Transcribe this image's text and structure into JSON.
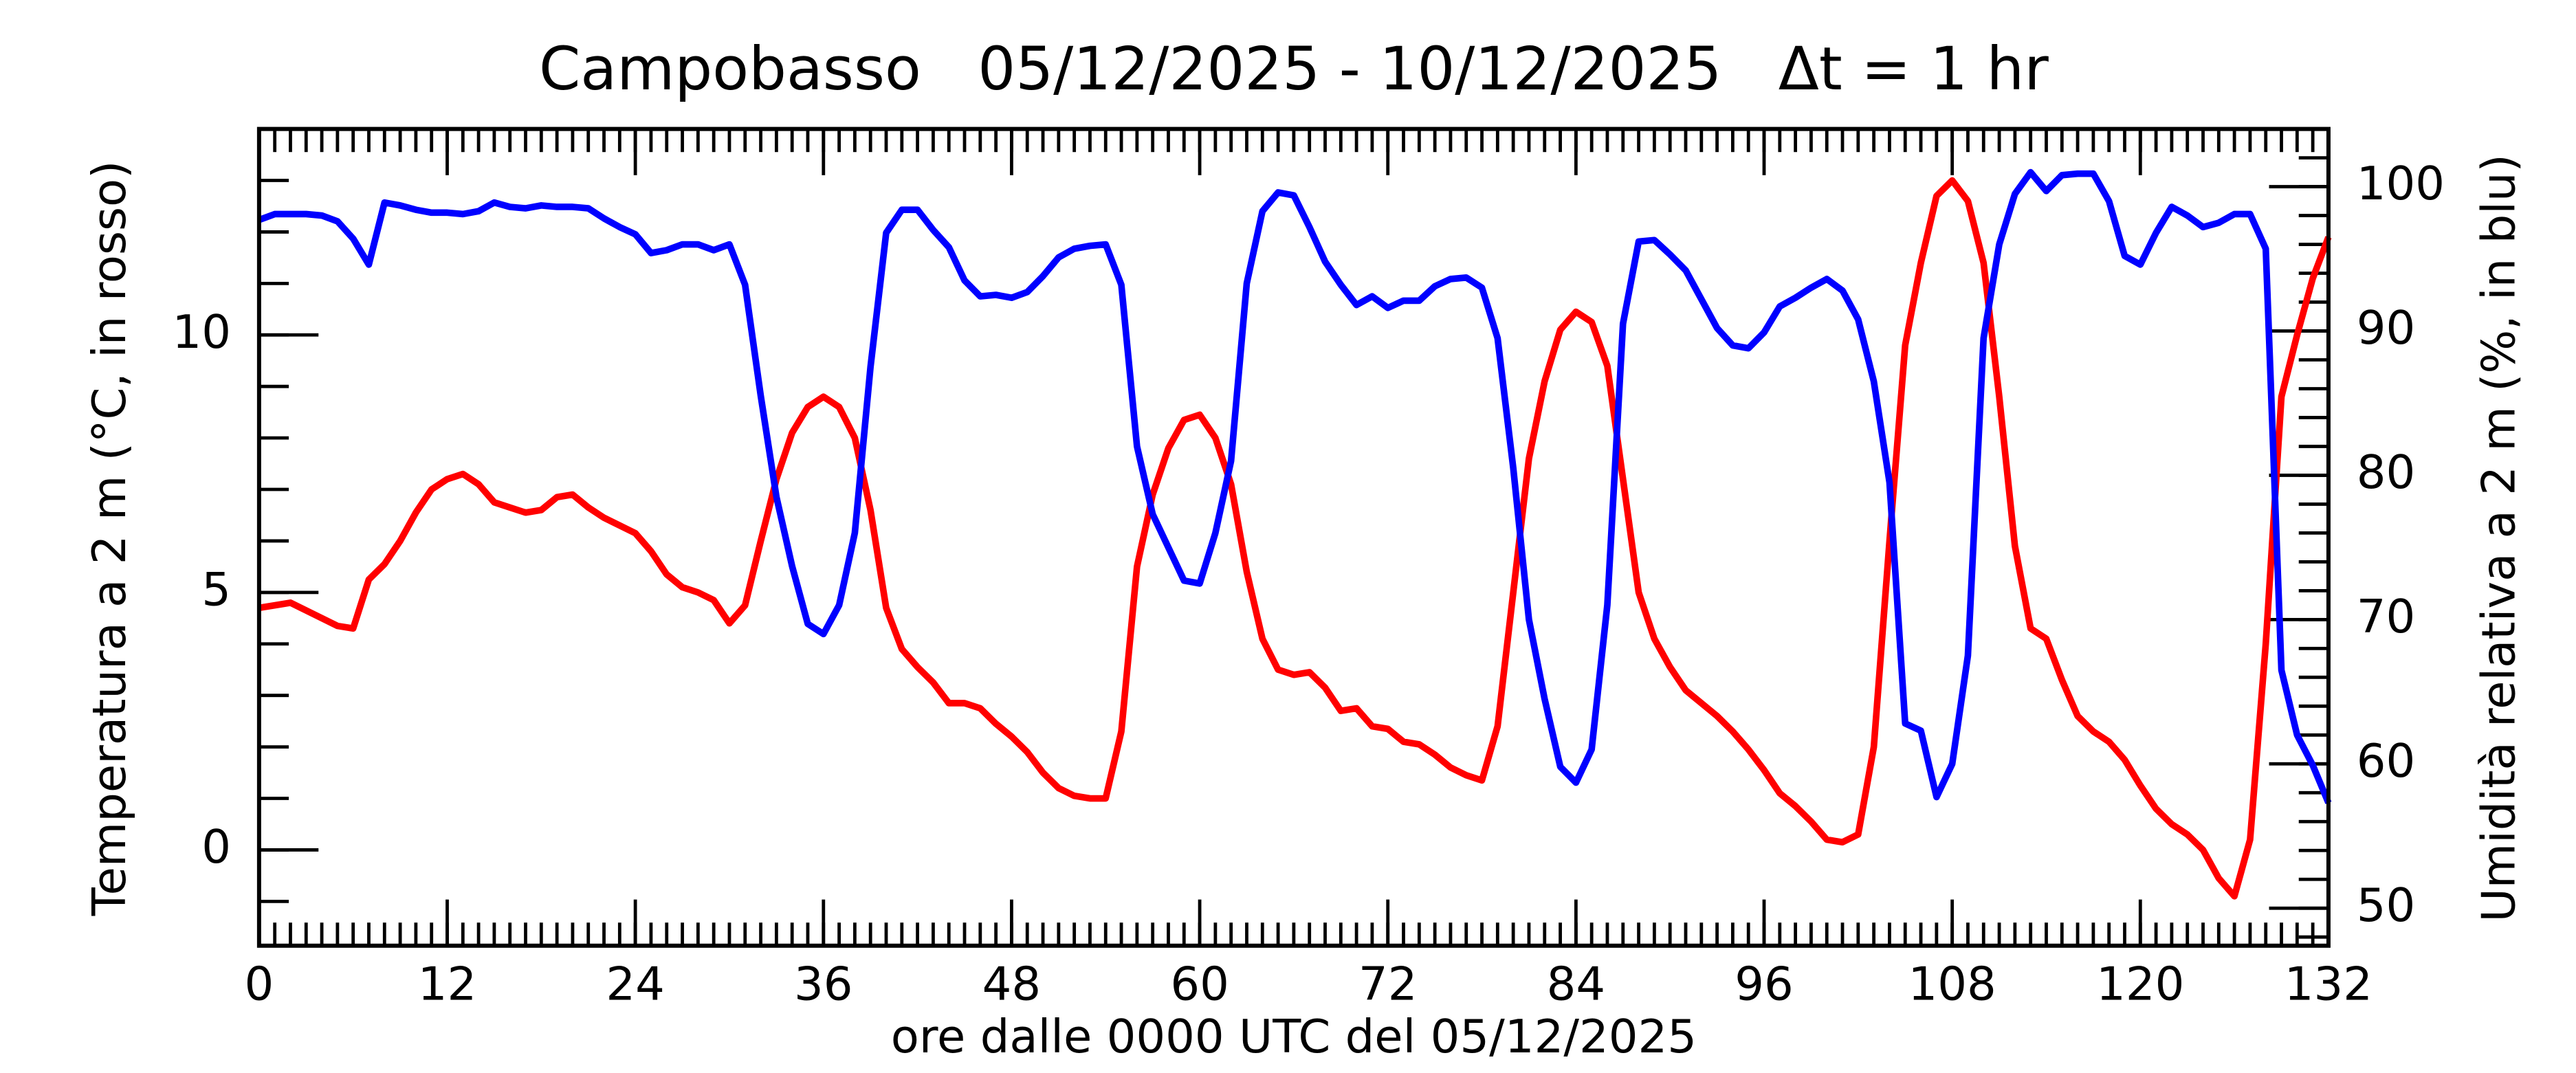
{
  "chart_data": {
    "type": "line",
    "title": "Campobasso   05/12/2025 - 10/12/2025   Δt = 1 hr",
    "xlabel": "ore dalle 0000 UTC del 05/12/2025",
    "ylabel": "Temperatura a 2 m (°C, in rosso)",
    "y2label": "Umidità relativa a 2 m (%, in blu)",
    "x": [
      0,
      1,
      2,
      3,
      4,
      5,
      6,
      7,
      8,
      9,
      10,
      11,
      12,
      13,
      14,
      15,
      16,
      17,
      18,
      19,
      20,
      21,
      22,
      23,
      24,
      25,
      26,
      27,
      28,
      29,
      30,
      31,
      32,
      33,
      34,
      35,
      36,
      37,
      38,
      39,
      40,
      41,
      42,
      43,
      44,
      45,
      46,
      47,
      48,
      49,
      50,
      51,
      52,
      53,
      54,
      55,
      56,
      57,
      58,
      59,
      60,
      61,
      62,
      63,
      64,
      65,
      66,
      67,
      68,
      69,
      70,
      71,
      72,
      73,
      74,
      75,
      76,
      77,
      78,
      79,
      80,
      81,
      82,
      83,
      84,
      85,
      86,
      87,
      88,
      89,
      90,
      91,
      92,
      93,
      94,
      95,
      96,
      97,
      98,
      99,
      100,
      101,
      102,
      103,
      104,
      105,
      106,
      107,
      108,
      109,
      110,
      111,
      112,
      113,
      114,
      115,
      116,
      117,
      118,
      119,
      120,
      121,
      122,
      123,
      124,
      125,
      126,
      127,
      128,
      129,
      130,
      131,
      132
    ],
    "xlim": [
      0,
      132
    ],
    "xticks": [
      0,
      12,
      24,
      36,
      48,
      60,
      72,
      84,
      96,
      108,
      120,
      132
    ],
    "ylim": [
      -1.86,
      14.0
    ],
    "yticks": [
      0,
      5,
      10
    ],
    "y2lim": [
      47.4,
      104.0
    ],
    "y2ticks": [
      50,
      60,
      70,
      80,
      90,
      100
    ],
    "series": [
      {
        "name": "Temperatura",
        "color": "#ff0000",
        "values": [
          4.7,
          4.75,
          4.8,
          4.65,
          4.5,
          4.35,
          4.3,
          5.25,
          5.55,
          6.0,
          6.55,
          7.0,
          7.2,
          7.3,
          7.1,
          6.75,
          6.65,
          6.55,
          6.6,
          6.85,
          6.9,
          6.65,
          6.45,
          6.3,
          6.15,
          5.8,
          5.35,
          5.1,
          5.0,
          4.85,
          4.4,
          4.75,
          6.0,
          7.2,
          8.1,
          8.6,
          8.8,
          8.6,
          8.0,
          6.6,
          4.7,
          3.9,
          3.55,
          3.25,
          2.85,
          2.85,
          2.75,
          2.45,
          2.2,
          1.9,
          1.5,
          1.2,
          1.05,
          1.0,
          1.0,
          2.3,
          5.5,
          6.9,
          7.8,
          8.35,
          8.45,
          8.0,
          7.1,
          5.4,
          4.1,
          3.5,
          3.4,
          3.45,
          3.15,
          2.7,
          2.75,
          2.4,
          2.35,
          2.1,
          2.05,
          1.85,
          1.6,
          1.45,
          1.35,
          2.4,
          5.0,
          7.6,
          9.1,
          10.1,
          10.45,
          10.25,
          9.4,
          7.2,
          5.0,
          4.1,
          3.55,
          3.1,
          2.85,
          2.6,
          2.3,
          1.95,
          1.55,
          1.1,
          0.85,
          0.55,
          0.2,
          0.15,
          0.3,
          2.0,
          6.0,
          9.8,
          11.4,
          12.7,
          13.0,
          12.6,
          11.4,
          8.8,
          5.9,
          4.3,
          4.1,
          3.3,
          2.6,
          2.3,
          2.1,
          1.75,
          1.25,
          0.8,
          0.5,
          0.3,
          0.0,
          -0.55,
          -0.9,
          0.2,
          4.0,
          8.8,
          10.0,
          11.1,
          11.9
        ]
      },
      {
        "name": "Umidità",
        "color": "#0000ff",
        "axis": "y2",
        "values": [
          97.7,
          98.1,
          98.1,
          98.1,
          98.0,
          97.6,
          96.4,
          94.6,
          98.9,
          98.7,
          98.4,
          98.2,
          98.2,
          98.1,
          98.3,
          98.9,
          98.6,
          98.5,
          98.7,
          98.6,
          98.6,
          98.5,
          97.8,
          97.2,
          96.7,
          95.4,
          95.6,
          96.0,
          96.0,
          95.6,
          96.0,
          93.2,
          85.5,
          78.5,
          73.7,
          69.7,
          69.0,
          71.0,
          76.0,
          87.5,
          96.8,
          98.4,
          98.4,
          97.0,
          95.8,
          93.5,
          92.4,
          92.5,
          92.3,
          92.7,
          93.8,
          95.1,
          95.7,
          95.9,
          96.0,
          93.2,
          82.0,
          77.3,
          75.0,
          72.7,
          72.5,
          76.0,
          81.0,
          93.3,
          98.3,
          99.6,
          99.4,
          97.2,
          94.8,
          93.2,
          91.8,
          92.4,
          91.6,
          92.1,
          92.1,
          93.1,
          93.6,
          93.7,
          93.0,
          89.5,
          80.5,
          70.0,
          64.5,
          59.8,
          58.7,
          61.0,
          71.0,
          90.5,
          96.2,
          96.3,
          95.3,
          94.2,
          92.2,
          90.2,
          89.0,
          88.8,
          89.9,
          91.7,
          92.3,
          93.0,
          93.6,
          92.8,
          90.8,
          86.5,
          79.5,
          62.8,
          62.3,
          57.7,
          60.0,
          67.5,
          89.5,
          96.0,
          99.5,
          101.0,
          99.7,
          100.8,
          100.9,
          100.9,
          99.0,
          95.2,
          94.6,
          96.8,
          98.6,
          98.0,
          97.2,
          97.5,
          98.1,
          98.1,
          95.7,
          66.5,
          62.0,
          59.9,
          57.3
        ]
      }
    ]
  }
}
